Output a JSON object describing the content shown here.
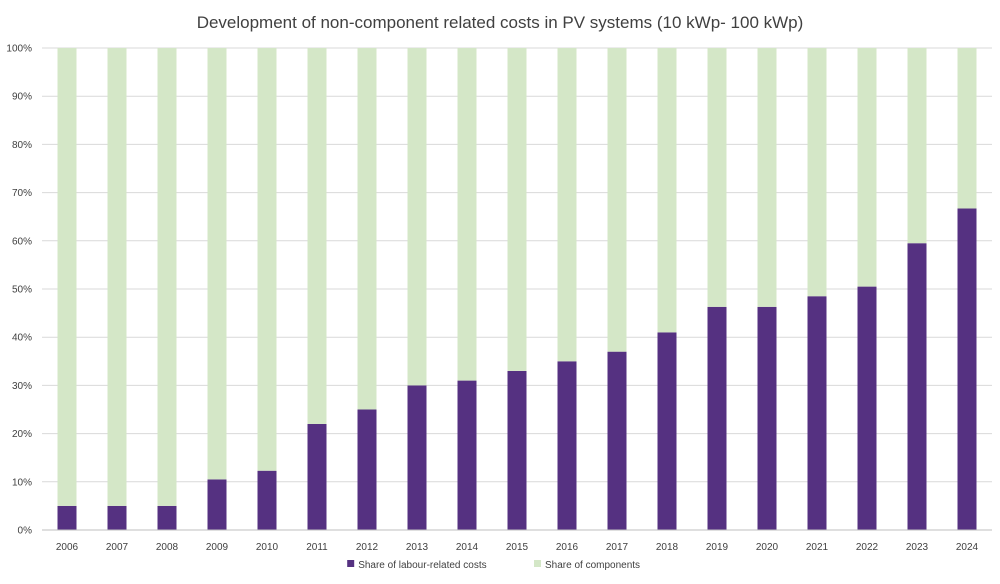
{
  "chart_data": {
    "type": "bar",
    "stacked": true,
    "title": "Development of non-component related costs in PV systems (10 kWp- 100 kWp)",
    "xlabel": "",
    "ylabel": "",
    "ylim": [
      0,
      100
    ],
    "y_tick_values": [
      0,
      10,
      20,
      30,
      40,
      50,
      60,
      70,
      80,
      90,
      100
    ],
    "y_tick_labels": [
      "0%",
      "10%",
      "20%",
      "30%",
      "40%",
      "50%",
      "60%",
      "70%",
      "80%",
      "90%",
      "100%"
    ],
    "grid": true,
    "legend_position": "bottom",
    "categories": [
      "2006",
      "2007",
      "2008",
      "2009",
      "2010",
      "2011",
      "2012",
      "2013",
      "2014",
      "2015",
      "2016",
      "2017",
      "2018",
      "2019",
      "2020",
      "2021",
      "2022",
      "2023",
      "2024"
    ],
    "series": [
      {
        "name": "Share of labour-related costs",
        "color": "#553181",
        "values": [
          5,
          5,
          5,
          10.5,
          12.3,
          22,
          25,
          30,
          31,
          33,
          35,
          37,
          41,
          46.3,
          46.3,
          48.5,
          50.5,
          59.5,
          66.7
        ]
      },
      {
        "name": "Share of components",
        "color": "#d4e7c7",
        "values": [
          95,
          95,
          95,
          89.5,
          87.7,
          78,
          75,
          70,
          69,
          67,
          65,
          63,
          59,
          53.7,
          53.7,
          51.5,
          49.5,
          40.5,
          33.3
        ]
      }
    ]
  }
}
